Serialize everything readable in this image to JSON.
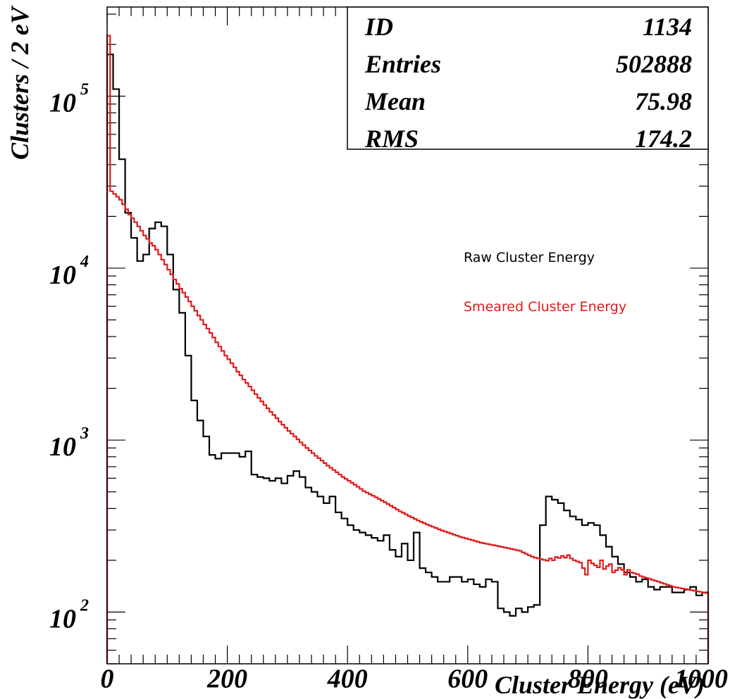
{
  "chart_data": {
    "type": "line",
    "xlabel": "Cluster Energy (eV)",
    "ylabel": "Clusters / 2 eV",
    "xlim": [
      0,
      1000
    ],
    "ylim": [
      50,
      330000
    ],
    "y_scale": "log",
    "x_ticks": [
      {
        "value": 0,
        "label": "0"
      },
      {
        "value": 200,
        "label": "200"
      },
      {
        "value": 400,
        "label": "400"
      },
      {
        "value": 600,
        "label": "600"
      },
      {
        "value": 800,
        "label": "800"
      },
      {
        "value": 1000,
        "label": "1000"
      }
    ],
    "y_ticks": [
      {
        "value": 100,
        "base": "10",
        "exp": "2"
      },
      {
        "value": 1000,
        "base": "10",
        "exp": "3"
      },
      {
        "value": 10000,
        "base": "10",
        "exp": "4"
      },
      {
        "value": 100000,
        "base": "10",
        "exp": "5"
      }
    ],
    "stats_box": [
      {
        "label": "ID",
        "value": "1134"
      },
      {
        "label": "Entries",
        "value": "502888"
      },
      {
        "label": "Mean",
        "value": "75.98"
      },
      {
        "label": "RMS",
        "value": "174.2"
      }
    ],
    "legend_position": "right, inside plot",
    "series": [
      {
        "name": "Raw Cluster Energy",
        "color": "#000000",
        "bin_width": 10,
        "x_start": 0,
        "values": [
          175000,
          110000,
          43000,
          21000,
          15000,
          11000,
          12000,
          17000,
          18500,
          17500,
          12000,
          7500,
          5500,
          3100,
          1700,
          1300,
          1050,
          820,
          780,
          840,
          840,
          840,
          800,
          860,
          630,
          610,
          600,
          580,
          600,
          560,
          620,
          660,
          610,
          530,
          500,
          470,
          430,
          470,
          380,
          350,
          320,
          300,
          290,
          280,
          270,
          260,
          280,
          230,
          210,
          250,
          200,
          290,
          180,
          170,
          160,
          150,
          150,
          160,
          160,
          150,
          155,
          145,
          140,
          155,
          150,
          105,
          100,
          95,
          105,
          100,
          107,
          110,
          320,
          470,
          450,
          430,
          390,
          360,
          345,
          320,
          330,
          320,
          280,
          240,
          210,
          190,
          170,
          160,
          150,
          155,
          140,
          135,
          140,
          140,
          130,
          130,
          135,
          140,
          125,
          130,
          150,
          145,
          120,
          150
        ]
      },
      {
        "name": "Smeared Cluster Energy",
        "color": "#e01a1a",
        "bin_width": 5,
        "x_start": 0,
        "values": [
          225000,
          28000,
          27000,
          26000,
          25000,
          23500,
          22000,
          20500,
          19500,
          18500,
          17500,
          16500,
          15500,
          14800,
          14000,
          13500,
          12800,
          12000,
          11200,
          10500,
          9800,
          9200,
          8600,
          8100,
          7600,
          7200,
          6800,
          6400,
          6000,
          5650,
          5300,
          5000,
          4700,
          4450,
          4200,
          3950,
          3700,
          3500,
          3300,
          3100,
          2950,
          2800,
          2650,
          2500,
          2380,
          2250,
          2150,
          2050,
          1950,
          1850,
          1760,
          1680,
          1600,
          1530,
          1460,
          1400,
          1340,
          1280,
          1230,
          1180,
          1130,
          1090,
          1050,
          1010,
          970,
          935,
          900,
          870,
          840,
          810,
          785,
          760,
          735,
          710,
          690,
          670,
          650,
          630,
          610,
          595,
          580,
          565,
          550,
          535,
          520,
          505,
          495,
          485,
          475,
          465,
          455,
          445,
          435,
          425,
          415,
          405,
          395,
          385,
          378,
          370,
          362,
          355,
          348,
          341,
          335,
          329,
          323,
          318,
          313,
          308,
          303,
          298,
          294,
          290,
          286,
          282,
          278,
          274,
          271,
          268,
          265,
          262,
          259,
          256,
          253,
          251,
          249,
          247,
          245,
          243,
          241,
          239,
          237,
          235,
          233,
          231,
          229,
          227,
          222,
          218,
          214,
          210,
          207,
          205,
          203,
          201,
          199,
          205,
          200,
          209,
          206,
          212,
          207,
          214,
          205,
          200,
          197,
          194,
          180,
          165,
          200,
          192,
          187,
          182,
          200,
          178,
          185,
          190,
          170,
          175,
          181,
          176,
          165,
          176,
          170,
          168,
          166,
          162,
          160,
          158,
          156,
          154,
          152,
          150,
          148,
          146,
          144,
          142,
          140,
          139,
          138,
          137,
          136,
          135,
          134,
          133,
          132,
          131,
          130,
          129,
          128,
          127,
          126,
          126
        ]
      }
    ]
  }
}
